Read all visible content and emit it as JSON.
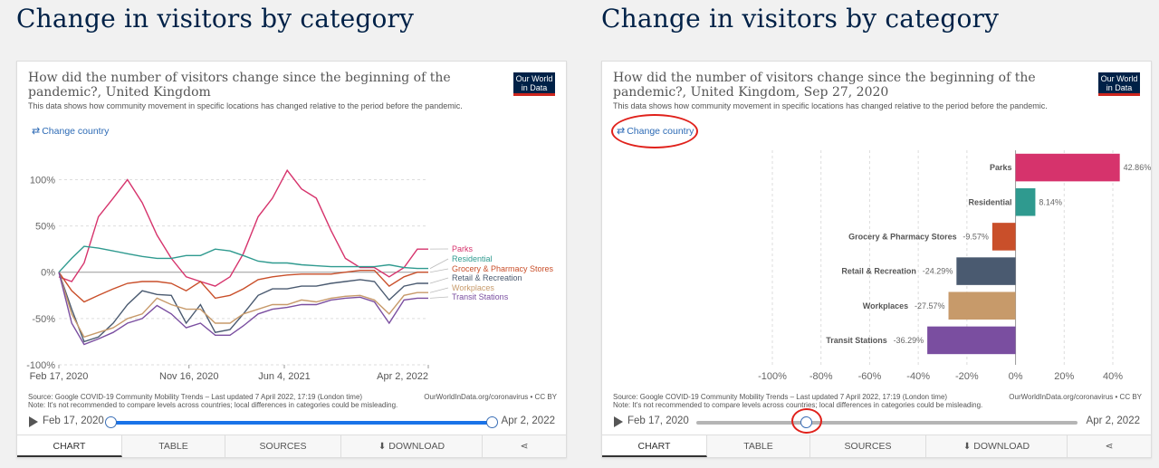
{
  "left": {
    "page_title": "Change in visitors by category",
    "chart_title": "How did the number of visitors change since the beginning of the pandemic?, United Kingdom",
    "subtitle": "This data shows how community movement in specific locations has changed relative to the period before the pandemic.",
    "logo": {
      "line1": "Our World",
      "line2": "in Data"
    },
    "change_country": "Change country",
    "source": "Source: Google COVID-19 Community Mobility Trends – Last updated 7 April 2022, 17:19 (London time)",
    "note": "Note: It's not recommended to compare levels across countries; local differences in categories could be misleading.",
    "site": "OurWorldInData.org/coronavirus • CC BY",
    "timeline": {
      "start": "Feb 17, 2020",
      "end": "Apr 2, 2022",
      "range_start_fraction": 0,
      "range_end_fraction": 1
    },
    "tabs": {
      "chart": "CHART",
      "table": "TABLE",
      "sources": "SOURCES",
      "download": "DOWNLOAD"
    }
  },
  "right": {
    "page_title": "Change in visitors by category",
    "chart_title": "How did the number of visitors change since the beginning of the pandemic?, United Kingdom, Sep 27, 2020",
    "subtitle": "This data shows how community movement in specific locations has changed relative to the period before the pandemic.",
    "logo": {
      "line1": "Our World",
      "line2": "in Data"
    },
    "change_country": "Change country",
    "source": "Source: Google COVID-19 Community Mobility Trends – Last updated 7 April 2022, 17:19 (London time)",
    "note": "Note: It's not recommended to compare levels across countries; local differences in categories could be misleading.",
    "site": "OurWorldInData.org/coronavirus • CC BY",
    "timeline": {
      "start": "Feb 17, 2020",
      "end": "Apr 2, 2022",
      "position_fraction": 0.29
    },
    "tabs": {
      "chart": "CHART",
      "table": "TABLE",
      "sources": "SOURCES",
      "download": "DOWNLOAD"
    }
  },
  "colors": {
    "Parks": "#d6336c",
    "Residential": "#2f9a8f",
    "Grocery & Pharmacy Stores": "#c94f2a",
    "Retail & Recreation": "#4a5a70",
    "Workplaces": "#c79a6a",
    "Transit Stations": "#7a4ea0",
    "annotation": "#e0211b",
    "slider_fill": "#1a73e8"
  },
  "chart_data": [
    {
      "type": "line",
      "x_ticks": [
        "Feb 17, 2020",
        "Nov 16, 2020",
        "Jun 4, 2021",
        "Apr 2, 2022"
      ],
      "y_ticks": [
        "100%",
        "50%",
        "0%",
        "-50%",
        "-100%"
      ],
      "ylim": [
        -100,
        120
      ],
      "x_range": [
        "2020-02-17",
        "2022-04-02"
      ],
      "grid": true,
      "legend": "right-end-labels",
      "x": [
        "2020-02-17",
        "2020-03-15",
        "2020-04-10",
        "2020-05-10",
        "2020-06-10",
        "2020-07-10",
        "2020-08-10",
        "2020-09-10",
        "2020-10-10",
        "2020-11-10",
        "2020-12-10",
        "2021-01-10",
        "2021-02-10",
        "2021-03-10",
        "2021-04-10",
        "2021-05-10",
        "2021-06-10",
        "2021-07-10",
        "2021-08-10",
        "2021-09-10",
        "2021-10-10",
        "2021-11-10",
        "2021-12-10",
        "2022-01-10",
        "2022-02-10",
        "2022-03-10",
        "2022-04-02"
      ],
      "series": [
        {
          "name": "Parks",
          "values": [
            -5,
            -10,
            10,
            60,
            80,
            100,
            75,
            40,
            15,
            -5,
            -10,
            -15,
            -5,
            20,
            60,
            80,
            110,
            90,
            80,
            45,
            15,
            5,
            5,
            -5,
            5,
            25,
            25
          ]
        },
        {
          "name": "Residential",
          "values": [
            0,
            15,
            28,
            26,
            23,
            20,
            17,
            15,
            15,
            18,
            18,
            25,
            23,
            18,
            12,
            10,
            10,
            8,
            7,
            6,
            6,
            6,
            6,
            8,
            5,
            4,
            4
          ]
        },
        {
          "name": "Grocery & Pharmacy Stores",
          "values": [
            0,
            -20,
            -32,
            -25,
            -18,
            -12,
            -10,
            -10,
            -12,
            -20,
            -10,
            -28,
            -25,
            -18,
            -8,
            -5,
            -3,
            -2,
            -2,
            -2,
            0,
            2,
            2,
            -15,
            -5,
            0,
            0
          ]
        },
        {
          "name": "Retail & Recreation",
          "values": [
            0,
            -40,
            -75,
            -70,
            -55,
            -35,
            -20,
            -24,
            -25,
            -55,
            -35,
            -65,
            -62,
            -45,
            -25,
            -18,
            -18,
            -15,
            -15,
            -12,
            -10,
            -8,
            -10,
            -30,
            -15,
            -12,
            -12
          ]
        },
        {
          "name": "Workplaces",
          "values": [
            0,
            -45,
            -70,
            -65,
            -60,
            -50,
            -45,
            -28,
            -35,
            -40,
            -40,
            -55,
            -55,
            -45,
            -40,
            -35,
            -35,
            -30,
            -32,
            -28,
            -26,
            -25,
            -30,
            -45,
            -25,
            -22,
            -22
          ]
        },
        {
          "name": "Transit Stations",
          "values": [
            0,
            -55,
            -78,
            -72,
            -65,
            -55,
            -50,
            -36,
            -45,
            -60,
            -55,
            -68,
            -68,
            -58,
            -45,
            -40,
            -38,
            -35,
            -35,
            -30,
            -28,
            -27,
            -32,
            -55,
            -30,
            -28,
            -28
          ]
        }
      ]
    },
    {
      "type": "bar",
      "orientation": "horizontal",
      "date": "Sep 27, 2020",
      "categories": [
        "Parks",
        "Residential",
        "Grocery & Pharmacy Stores",
        "Retail & Recreation",
        "Workplaces",
        "Transit Stations"
      ],
      "values": [
        42.86,
        8.14,
        -9.57,
        -24.29,
        -27.57,
        -36.29
      ],
      "value_labels": [
        "42.86%",
        "8.14%",
        "-9.57%",
        "-24.29%",
        "-27.57%",
        "-36.29%"
      ],
      "x_ticks": [
        "-100%",
        "-80%",
        "-60%",
        "-40%",
        "-20%",
        "0%",
        "20%",
        "40%"
      ],
      "xlim": [
        -100,
        40
      ],
      "grid": true
    }
  ]
}
